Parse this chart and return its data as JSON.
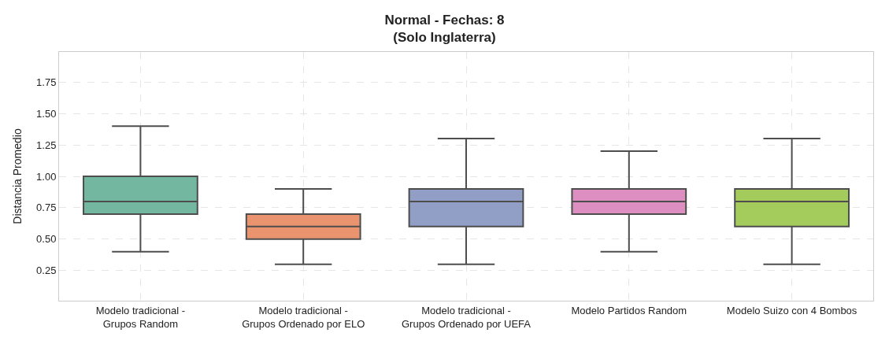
{
  "chart_data": {
    "type": "box",
    "title": "Normal - Fechas: 8\n(Solo Inglaterra)",
    "ylabel": "Distancia Promedio",
    "categories": [
      "Modelo tradicional -\nGrupos Random",
      "Modelo tradicional -\nGrupos Ordenado por ELO",
      "Modelo tradicional -\nGrupos Ordenado por UEFA",
      "Modelo Partidos Random",
      "Modelo Suizo con 4 Bombos"
    ],
    "colors": [
      "#73b7a0",
      "#e9946f",
      "#919fc6",
      "#dc8fc0",
      "#a3cc5d"
    ],
    "boxes": [
      {
        "low": 0.4,
        "q1": 0.7,
        "median": 0.8,
        "q3": 1.0,
        "high": 1.4
      },
      {
        "low": 0.3,
        "q1": 0.5,
        "median": 0.6,
        "q3": 0.7,
        "high": 0.9
      },
      {
        "low": 0.3,
        "q1": 0.6,
        "median": 0.8,
        "q3": 0.9,
        "high": 1.3
      },
      {
        "low": 0.4,
        "q1": 0.7,
        "median": 0.8,
        "q3": 0.9,
        "high": 1.2
      },
      {
        "low": 0.3,
        "q1": 0.6,
        "median": 0.8,
        "q3": 0.9,
        "high": 1.3
      }
    ],
    "ylim": [
      0.01,
      1.99
    ],
    "yticks": [
      0.25,
      {
        "value": 0.5,
        "label": "0.50"
      },
      0.75,
      {
        "value": 1.0,
        "label": "1.00"
      },
      1.25,
      {
        "value": 1.5,
        "label": "1.50"
      },
      1.75
    ],
    "grid": true
  }
}
